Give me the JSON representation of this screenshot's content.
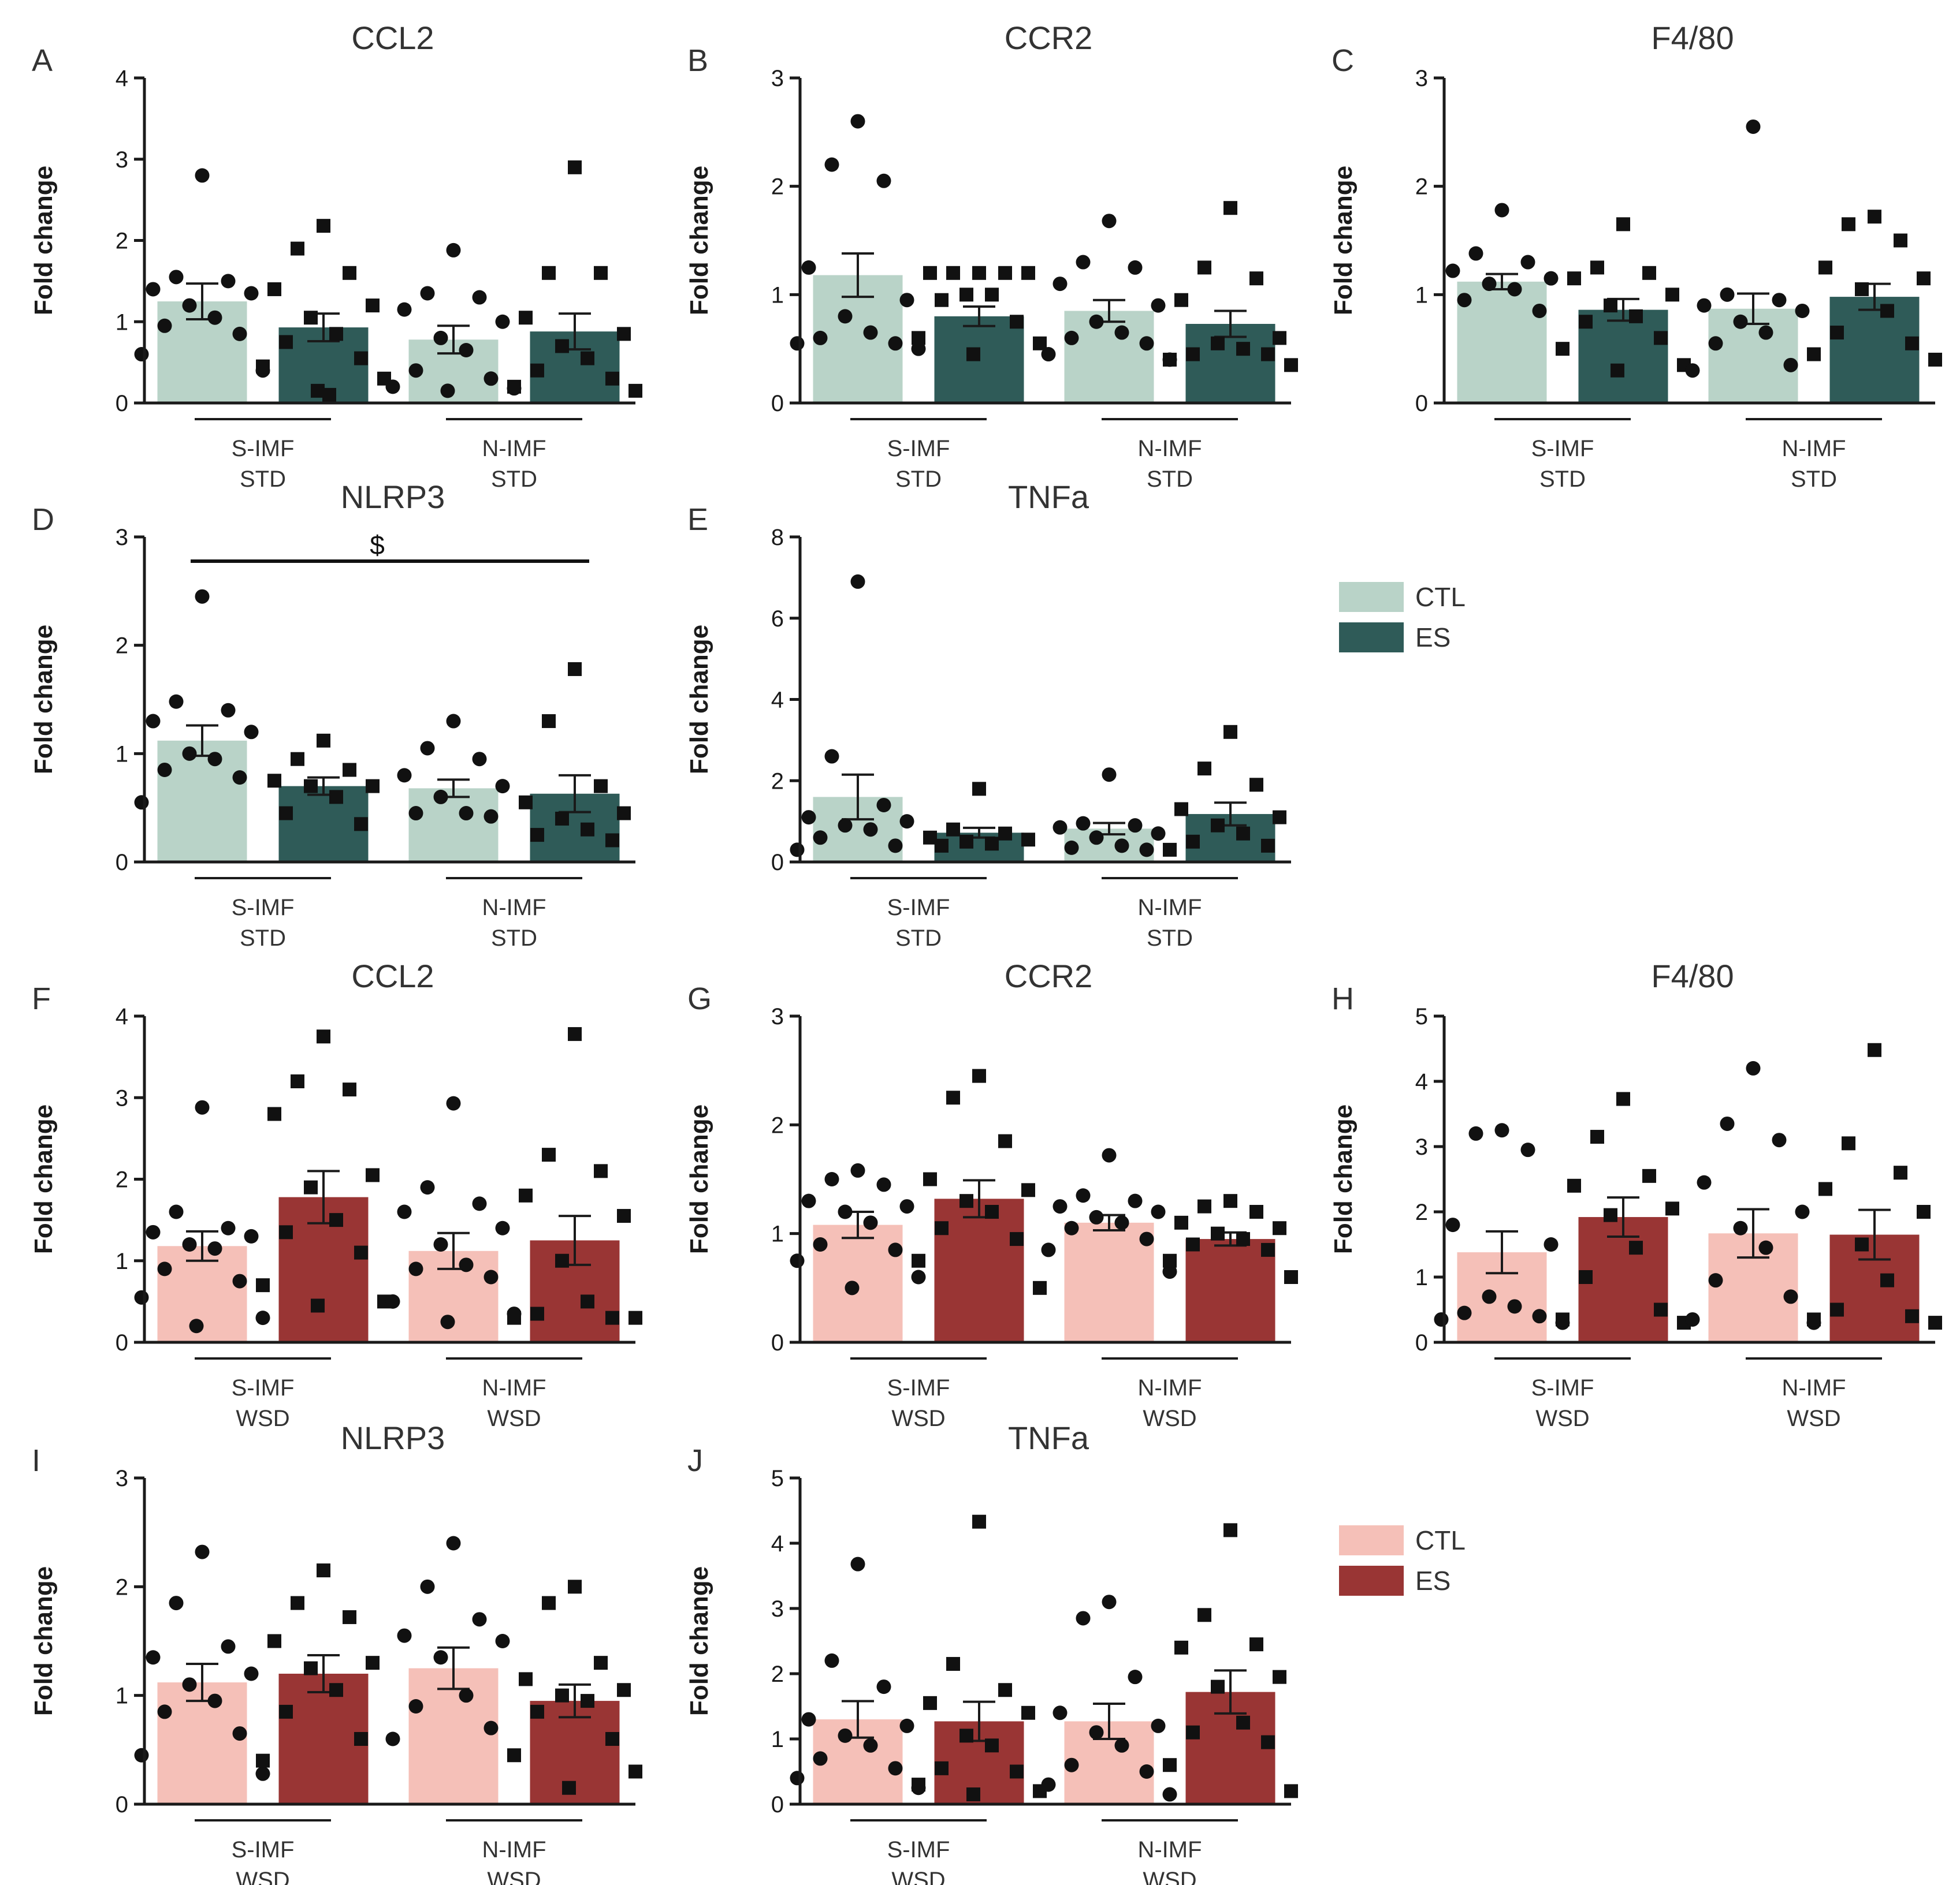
{
  "colors": {
    "std_ctl": "#b9d3c8",
    "std_es": "#2f5b58",
    "wsd_ctl": "#f5c0b8",
    "wsd_es": "#993534",
    "axis": "#1a1a1a",
    "text": "#333333"
  },
  "legends": [
    {
      "items": [
        {
          "label": "CTL",
          "color": "#b9d3c8"
        },
        {
          "label": "ES",
          "color": "#2f5b58"
        }
      ]
    },
    {
      "items": [
        {
          "label": "CTL",
          "color": "#f5c0b8"
        },
        {
          "label": "ES",
          "color": "#993534"
        }
      ]
    }
  ],
  "chart_data": [
    {
      "type": "bar",
      "panel": "A",
      "title": "CCL2",
      "ylabel": "Fold change",
      "ylim": [
        0,
        4
      ],
      "yticks": [
        0,
        1,
        2,
        3,
        4
      ],
      "groups": [
        {
          "line1": "S-IMF",
          "line2": "STD"
        },
        {
          "line1": "N-IMF",
          "line2": "STD"
        }
      ],
      "bars": [
        {
          "group": 0,
          "series": "CTL",
          "mean": 1.25,
          "sem": 0.22,
          "marker": "circle",
          "points": [
            2.8,
            1.55,
            1.5,
            1.4,
            1.35,
            1.2,
            1.05,
            0.95,
            0.85,
            0.6,
            0.4
          ]
        },
        {
          "group": 0,
          "series": "ES",
          "mean": 0.93,
          "sem": 0.17,
          "marker": "square",
          "points": [
            2.18,
            1.9,
            1.6,
            1.4,
            1.2,
            1.05,
            0.85,
            0.75,
            0.55,
            0.45,
            0.3,
            0.15,
            0.1
          ]
        },
        {
          "group": 1,
          "series": "CTL",
          "mean": 0.78,
          "sem": 0.17,
          "marker": "circle",
          "points": [
            1.88,
            1.35,
            1.3,
            1.15,
            1.0,
            0.8,
            0.65,
            0.4,
            0.3,
            0.2,
            0.18,
            0.15
          ]
        },
        {
          "group": 1,
          "series": "ES",
          "mean": 0.88,
          "sem": 0.22,
          "marker": "square",
          "points": [
            2.9,
            1.6,
            1.6,
            1.05,
            0.85,
            0.7,
            0.55,
            0.4,
            0.3,
            0.2,
            0.15
          ]
        }
      ]
    },
    {
      "type": "bar",
      "panel": "B",
      "title": "CCR2",
      "ylabel": "Fold change",
      "ylim": [
        0,
        3
      ],
      "yticks": [
        0,
        1,
        2,
        3
      ],
      "groups": [
        {
          "line1": "S-IMF",
          "line2": "STD"
        },
        {
          "line1": "N-IMF",
          "line2": "STD"
        }
      ],
      "bars": [
        {
          "group": 0,
          "series": "CTL",
          "mean": 1.18,
          "sem": 0.2,
          "marker": "circle",
          "points": [
            2.6,
            2.2,
            2.05,
            1.25,
            0.95,
            0.8,
            0.65,
            0.6,
            0.55,
            0.55,
            0.5
          ]
        },
        {
          "group": 0,
          "series": "ES",
          "mean": 0.8,
          "sem": 0.09,
          "marker": "square",
          "points": [
            1.2,
            1.2,
            1.2,
            1.2,
            1.2,
            1.0,
            1.0,
            0.95,
            0.75,
            0.6,
            0.55,
            0.45
          ]
        },
        {
          "group": 1,
          "series": "CTL",
          "mean": 0.85,
          "sem": 0.1,
          "marker": "circle",
          "points": [
            1.68,
            1.3,
            1.25,
            1.1,
            0.9,
            0.75,
            0.65,
            0.6,
            0.55,
            0.45,
            0.4
          ]
        },
        {
          "group": 1,
          "series": "ES",
          "mean": 0.73,
          "sem": 0.12,
          "marker": "square",
          "points": [
            1.8,
            1.25,
            1.15,
            0.95,
            0.6,
            0.55,
            0.5,
            0.45,
            0.45,
            0.4,
            0.35
          ]
        }
      ]
    },
    {
      "type": "bar",
      "panel": "C",
      "title": "F4/80",
      "ylabel": "Fold change",
      "ylim": [
        0,
        3
      ],
      "yticks": [
        0,
        1,
        2,
        3
      ],
      "groups": [
        {
          "line1": "S-IMF",
          "line2": "STD"
        },
        {
          "line1": "N-IMF",
          "line2": "STD"
        }
      ],
      "bars": [
        {
          "group": 0,
          "series": "CTL",
          "mean": 1.12,
          "sem": 0.07,
          "marker": "circle",
          "points": [
            1.78,
            1.38,
            1.3,
            1.22,
            1.15,
            1.1,
            1.05,
            0.95,
            0.85
          ]
        },
        {
          "group": 0,
          "series": "ES",
          "mean": 0.86,
          "sem": 0.1,
          "marker": "square",
          "points": [
            1.65,
            1.25,
            1.2,
            1.15,
            1.0,
            0.9,
            0.8,
            0.75,
            0.6,
            0.5,
            0.35,
            0.3
          ]
        },
        {
          "group": 1,
          "series": "CTL",
          "mean": 0.87,
          "sem": 0.14,
          "marker": "circle",
          "points": [
            2.55,
            1.0,
            0.95,
            0.9,
            0.85,
            0.75,
            0.65,
            0.55,
            0.35,
            0.3
          ]
        },
        {
          "group": 1,
          "series": "ES",
          "mean": 0.98,
          "sem": 0.12,
          "marker": "square",
          "points": [
            1.72,
            1.65,
            1.5,
            1.25,
            1.15,
            1.05,
            0.85,
            0.65,
            0.55,
            0.45,
            0.4
          ]
        }
      ]
    },
    {
      "type": "bar",
      "panel": "D",
      "title": "NLRP3",
      "ylabel": "Fold change",
      "ylim": [
        0,
        3
      ],
      "yticks": [
        0,
        1,
        2,
        3
      ],
      "annotation": "$",
      "groups": [
        {
          "line1": "S-IMF",
          "line2": "STD"
        },
        {
          "line1": "N-IMF",
          "line2": "STD"
        }
      ],
      "bars": [
        {
          "group": 0,
          "series": "CTL",
          "mean": 1.12,
          "sem": 0.14,
          "marker": "circle",
          "points": [
            2.45,
            1.48,
            1.4,
            1.3,
            1.2,
            1.0,
            0.95,
            0.85,
            0.78,
            0.55
          ]
        },
        {
          "group": 0,
          "series": "ES",
          "mean": 0.7,
          "sem": 0.08,
          "marker": "square",
          "points": [
            1.12,
            0.95,
            0.85,
            0.75,
            0.7,
            0.7,
            0.6,
            0.45,
            0.35
          ]
        },
        {
          "group": 1,
          "series": "CTL",
          "mean": 0.68,
          "sem": 0.08,
          "marker": "circle",
          "points": [
            1.3,
            1.05,
            0.95,
            0.8,
            0.7,
            0.6,
            0.45,
            0.45,
            0.42
          ]
        },
        {
          "group": 1,
          "series": "ES",
          "mean": 0.63,
          "sem": 0.17,
          "marker": "square",
          "points": [
            1.78,
            1.3,
            0.7,
            0.55,
            0.45,
            0.4,
            0.3,
            0.25,
            0.2
          ]
        }
      ]
    },
    {
      "type": "bar",
      "panel": "E",
      "title": "TNFa",
      "ylabel": "Fold change",
      "ylim": [
        0,
        8
      ],
      "yticks": [
        0,
        2,
        4,
        6,
        8
      ],
      "groups": [
        {
          "line1": "S-IMF",
          "line2": "STD"
        },
        {
          "line1": "N-IMF",
          "line2": "STD"
        }
      ],
      "bars": [
        {
          "group": 0,
          "series": "CTL",
          "mean": 1.6,
          "sem": 0.55,
          "marker": "circle",
          "points": [
            6.9,
            2.6,
            1.4,
            1.1,
            1.0,
            0.9,
            0.8,
            0.6,
            0.4,
            0.3
          ]
        },
        {
          "group": 0,
          "series": "ES",
          "mean": 0.72,
          "sem": 0.12,
          "marker": "square",
          "points": [
            1.8,
            0.8,
            0.7,
            0.6,
            0.55,
            0.5,
            0.45,
            0.4
          ]
        },
        {
          "group": 1,
          "series": "CTL",
          "mean": 0.82,
          "sem": 0.14,
          "marker": "circle",
          "points": [
            2.15,
            0.95,
            0.9,
            0.85,
            0.7,
            0.6,
            0.4,
            0.35,
            0.3
          ]
        },
        {
          "group": 1,
          "series": "ES",
          "mean": 1.18,
          "sem": 0.28,
          "marker": "square",
          "points": [
            3.2,
            2.3,
            1.9,
            1.3,
            1.1,
            0.9,
            0.7,
            0.5,
            0.4,
            0.3
          ]
        }
      ]
    },
    {
      "type": "bar",
      "panel": "F",
      "title": "CCL2",
      "ylabel": "Fold change",
      "ylim": [
        0,
        4
      ],
      "yticks": [
        0,
        1,
        2,
        3,
        4
      ],
      "groups": [
        {
          "line1": "S-IMF",
          "line2": "WSD"
        },
        {
          "line1": "N-IMF",
          "line2": "WSD"
        }
      ],
      "bars": [
        {
          "group": 0,
          "series": "CTL",
          "mean": 1.18,
          "sem": 0.18,
          "marker": "circle",
          "points": [
            2.88,
            1.6,
            1.4,
            1.35,
            1.3,
            1.2,
            1.15,
            0.9,
            0.75,
            0.55,
            0.3,
            0.2
          ]
        },
        {
          "group": 0,
          "series": "ES",
          "mean": 1.78,
          "sem": 0.32,
          "marker": "square",
          "points": [
            3.75,
            3.2,
            3.1,
            2.8,
            2.05,
            1.9,
            1.5,
            1.35,
            1.1,
            0.7,
            0.5,
            0.45
          ]
        },
        {
          "group": 1,
          "series": "CTL",
          "mean": 1.12,
          "sem": 0.22,
          "marker": "circle",
          "points": [
            2.93,
            1.9,
            1.7,
            1.6,
            1.4,
            1.2,
            0.95,
            0.9,
            0.8,
            0.5,
            0.35,
            0.25
          ]
        },
        {
          "group": 1,
          "series": "ES",
          "mean": 1.25,
          "sem": 0.3,
          "marker": "square",
          "points": [
            3.78,
            2.3,
            2.1,
            1.8,
            1.55,
            1.0,
            0.5,
            0.35,
            0.3,
            0.3,
            0.3
          ]
        }
      ]
    },
    {
      "type": "bar",
      "panel": "G",
      "title": "CCR2",
      "ylabel": "Fold change",
      "ylim": [
        0,
        3
      ],
      "yticks": [
        0,
        1,
        2,
        3
      ],
      "groups": [
        {
          "line1": "S-IMF",
          "line2": "WSD"
        },
        {
          "line1": "N-IMF",
          "line2": "WSD"
        }
      ],
      "bars": [
        {
          "group": 0,
          "series": "CTL",
          "mean": 1.08,
          "sem": 0.12,
          "marker": "circle",
          "points": [
            1.58,
            1.5,
            1.45,
            1.3,
            1.25,
            1.2,
            1.1,
            0.9,
            0.85,
            0.75,
            0.6,
            0.5
          ]
        },
        {
          "group": 0,
          "series": "ES",
          "mean": 1.32,
          "sem": 0.17,
          "marker": "square",
          "points": [
            2.45,
            2.25,
            1.85,
            1.5,
            1.4,
            1.3,
            1.2,
            1.05,
            0.95,
            0.75,
            0.5
          ]
        },
        {
          "group": 1,
          "series": "CTL",
          "mean": 1.1,
          "sem": 0.07,
          "marker": "circle",
          "points": [
            1.72,
            1.35,
            1.3,
            1.25,
            1.2,
            1.15,
            1.1,
            1.05,
            0.95,
            0.85,
            0.65
          ]
        },
        {
          "group": 1,
          "series": "ES",
          "mean": 0.95,
          "sem": 0.06,
          "marker": "square",
          "points": [
            1.3,
            1.25,
            1.2,
            1.1,
            1.05,
            1.0,
            0.95,
            0.9,
            0.85,
            0.75,
            0.6
          ]
        }
      ]
    },
    {
      "type": "bar",
      "panel": "H",
      "title": "F4/80",
      "ylabel": "Fold change",
      "ylim": [
        0,
        5
      ],
      "yticks": [
        0,
        1,
        2,
        3,
        4,
        5
      ],
      "groups": [
        {
          "line1": "S-IMF",
          "line2": "WSD"
        },
        {
          "line1": "N-IMF",
          "line2": "WSD"
        }
      ],
      "bars": [
        {
          "group": 0,
          "series": "CTL",
          "mean": 1.38,
          "sem": 0.32,
          "marker": "circle",
          "points": [
            3.25,
            3.2,
            2.95,
            1.8,
            1.5,
            0.7,
            0.55,
            0.45,
            0.4,
            0.35,
            0.3
          ]
        },
        {
          "group": 0,
          "series": "ES",
          "mean": 1.92,
          "sem": 0.3,
          "marker": "square",
          "points": [
            3.73,
            3.15,
            2.55,
            2.4,
            2.05,
            1.95,
            1.45,
            1.0,
            0.5,
            0.35,
            0.3
          ]
        },
        {
          "group": 1,
          "series": "CTL",
          "mean": 1.67,
          "sem": 0.37,
          "marker": "circle",
          "points": [
            4.2,
            3.35,
            3.1,
            2.45,
            2.0,
            1.75,
            1.45,
            0.95,
            0.7,
            0.35,
            0.3
          ]
        },
        {
          "group": 1,
          "series": "ES",
          "mean": 1.65,
          "sem": 0.38,
          "marker": "square",
          "points": [
            4.48,
            3.05,
            2.6,
            2.35,
            2.0,
            1.5,
            0.95,
            0.5,
            0.4,
            0.35,
            0.3
          ]
        }
      ]
    },
    {
      "type": "bar",
      "panel": "I",
      "title": "NLRP3",
      "ylabel": "Fold change",
      "ylim": [
        0,
        3
      ],
      "yticks": [
        0,
        1,
        2,
        3
      ],
      "groups": [
        {
          "line1": "S-IMF",
          "line2": "WSD"
        },
        {
          "line1": "N-IMF",
          "line2": "WSD"
        }
      ],
      "bars": [
        {
          "group": 0,
          "series": "CTL",
          "mean": 1.12,
          "sem": 0.17,
          "marker": "circle",
          "points": [
            2.32,
            1.85,
            1.45,
            1.35,
            1.2,
            1.1,
            0.95,
            0.85,
            0.65,
            0.45,
            0.28
          ]
        },
        {
          "group": 0,
          "series": "ES",
          "mean": 1.2,
          "sem": 0.17,
          "marker": "square",
          "points": [
            2.15,
            1.85,
            1.72,
            1.5,
            1.3,
            1.25,
            1.05,
            0.85,
            0.6,
            0.4
          ]
        },
        {
          "group": 1,
          "series": "CTL",
          "mean": 1.25,
          "sem": 0.19,
          "marker": "circle",
          "points": [
            2.4,
            2.0,
            1.7,
            1.55,
            1.5,
            1.35,
            1.0,
            0.9,
            0.7,
            0.6
          ]
        },
        {
          "group": 1,
          "series": "ES",
          "mean": 0.95,
          "sem": 0.15,
          "marker": "square",
          "points": [
            2.0,
            1.85,
            1.3,
            1.15,
            1.05,
            1.0,
            0.95,
            0.85,
            0.6,
            0.45,
            0.3,
            0.15
          ]
        }
      ]
    },
    {
      "type": "bar",
      "panel": "J",
      "title": "TNFa",
      "ylabel": "Fold change",
      "ylim": [
        0,
        5
      ],
      "yticks": [
        0,
        1,
        2,
        3,
        4,
        5
      ],
      "groups": [
        {
          "line1": "S-IMF",
          "line2": "WSD"
        },
        {
          "line1": "N-IMF",
          "line2": "WSD"
        }
      ],
      "bars": [
        {
          "group": 0,
          "series": "CTL",
          "mean": 1.3,
          "sem": 0.28,
          "marker": "circle",
          "points": [
            3.68,
            2.2,
            1.8,
            1.3,
            1.2,
            1.05,
            0.9,
            0.7,
            0.55,
            0.4,
            0.25
          ]
        },
        {
          "group": 0,
          "series": "ES",
          "mean": 1.27,
          "sem": 0.3,
          "marker": "square",
          "points": [
            4.33,
            2.15,
            1.75,
            1.55,
            1.4,
            1.05,
            0.9,
            0.55,
            0.5,
            0.3,
            0.2,
            0.15
          ]
        },
        {
          "group": 1,
          "series": "CTL",
          "mean": 1.27,
          "sem": 0.27,
          "marker": "circle",
          "points": [
            3.1,
            2.85,
            1.95,
            1.4,
            1.2,
            1.1,
            0.9,
            0.6,
            0.5,
            0.3,
            0.15
          ]
        },
        {
          "group": 1,
          "series": "ES",
          "mean": 1.72,
          "sem": 0.33,
          "marker": "square",
          "points": [
            4.2,
            2.9,
            2.45,
            2.4,
            1.95,
            1.8,
            1.25,
            1.1,
            0.95,
            0.6,
            0.2
          ]
        }
      ]
    }
  ]
}
